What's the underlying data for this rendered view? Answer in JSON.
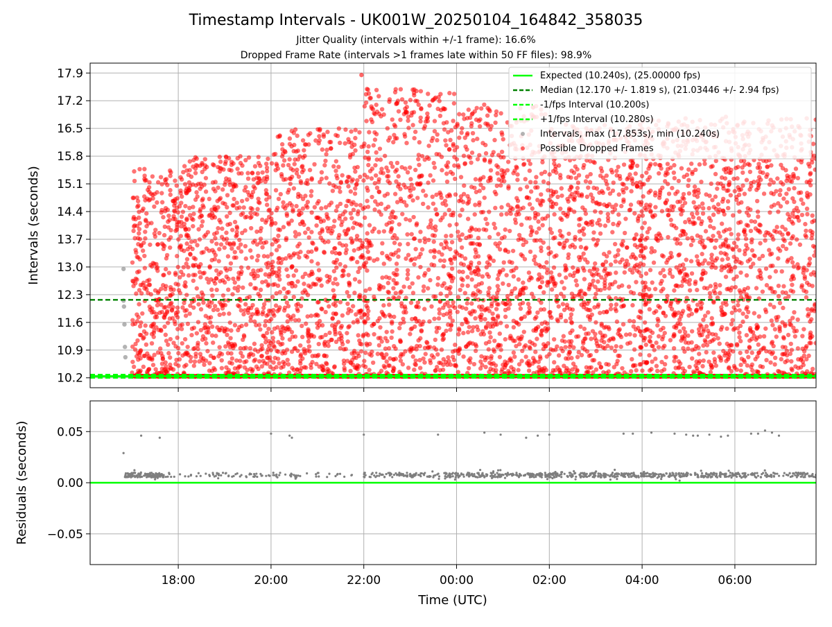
{
  "figure": {
    "title": "Timestamp Intervals - UK001W_20250104_164842_358035",
    "subtitle_line1": "Jitter Quality (intervals within +/-1 frame): 16.6%",
    "subtitle_line2": "Dropped Frame Rate (intervals >1 frames late within 50 FF files): 98.9%"
  },
  "chart_data": [
    {
      "type": "scatter",
      "panel": "intervals",
      "title": "",
      "xlabel": "",
      "ylabel": "Intervals (seconds)",
      "x_unit": "hours since 00:00 UTC (negative = previous day)",
      "xlim": [
        -7.9,
        7.75
      ],
      "ylim": [
        9.95,
        18.15
      ],
      "x_ticks": [
        -6,
        -4,
        -2,
        0,
        2,
        4,
        6
      ],
      "x_tick_labels": [
        "18:00",
        "20:00",
        "22:00",
        "00:00",
        "02:00",
        "04:00",
        "06:00"
      ],
      "y_ticks": [
        10.2,
        10.9,
        11.6,
        12.3,
        13.0,
        13.7,
        14.4,
        15.1,
        15.8,
        16.5,
        17.2,
        17.9
      ],
      "y_tick_labels": [
        "10.2",
        "10.9",
        "11.6",
        "12.3",
        "13.0",
        "13.7",
        "14.4",
        "15.1",
        "15.8",
        "16.5",
        "17.2",
        "17.9"
      ],
      "grid": true,
      "legend_position": "upper-right",
      "lines": [
        {
          "name": "Expected (10.240s), (25.00000 fps)",
          "y": 10.24,
          "color": "#00ff00",
          "style": "solid"
        },
        {
          "name": "Median (12.170 +/- 1.819 s), (21.03446 +/- 2.94 fps)",
          "y": 12.17,
          "color": "#008000",
          "style": "dashed"
        },
        {
          "name": "-1/fps Interval (10.200s)",
          "y": 10.2,
          "color": "#00ff00",
          "style": "dashed"
        },
        {
          "name": "+1/fps Interval (10.280s)",
          "y": 10.28,
          "color": "#00ff00",
          "style": "dashed"
        }
      ],
      "series": [
        {
          "name": "Intervals, max (17.853s), min (10.240s)",
          "color": "#808080",
          "x": [
            -7.18,
            -7.18,
            -7.17,
            -7.16,
            -7.15,
            -7.14
          ],
          "y": [
            12.95,
            12.15,
            12.0,
            11.55,
            10.98,
            10.72
          ]
        },
        {
          "name": "Possible Dropped Frames",
          "color": "#ff0000",
          "x_range": [
            -7.0,
            7.75
          ],
          "y_range": [
            10.28,
            17.85
          ],
          "max_point": [
            -2.05,
            17.85
          ],
          "baseline_y": 10.24,
          "density_by_hour": [
            {
              "x": [
                -7.0,
                -6.0
              ],
              "y_range": [
                10.28,
                15.5
              ]
            },
            {
              "x": [
                -6.0,
                -4.0
              ],
              "y_range": [
                10.28,
                15.8
              ]
            },
            {
              "x": [
                -4.0,
                -2.0
              ],
              "y_range": [
                10.28,
                16.5
              ]
            },
            {
              "x": [
                -2.0,
                0.0
              ],
              "y_range": [
                10.28,
                17.5
              ]
            },
            {
              "x": [
                0.0,
                2.0
              ],
              "y_range": [
                10.28,
                17.1
              ]
            },
            {
              "x": [
                2.0,
                4.0
              ],
              "y_range": [
                10.28,
                16.6
              ]
            },
            {
              "x": [
                4.0,
                7.75
              ],
              "y_range": [
                10.28,
                16.8
              ]
            }
          ]
        }
      ]
    },
    {
      "type": "scatter",
      "panel": "residuals",
      "title": "",
      "xlabel": "Time (UTC)",
      "ylabel": "Residuals (seconds)",
      "xlim": [
        -7.9,
        7.75
      ],
      "ylim": [
        -0.08,
        0.08
      ],
      "x_ticks": [
        -6,
        -4,
        -2,
        0,
        2,
        4,
        6
      ],
      "x_tick_labels": [
        "18:00",
        "20:00",
        "22:00",
        "00:00",
        "02:00",
        "04:00",
        "06:00"
      ],
      "y_ticks": [
        0.05,
        0.0,
        -0.05
      ],
      "y_tick_labels": [
        "0.05",
        "0.00",
        "−0.05"
      ],
      "grid": true,
      "lines": [
        {
          "name": "zero",
          "y": 0.0,
          "color": "#00ff00",
          "style": "solid"
        }
      ],
      "series": [
        {
          "name": "Residuals",
          "color": "#808080",
          "x": [
            -7.18,
            -6.8,
            -6.4,
            -4.0,
            -3.6,
            -3.55,
            -2.0,
            -0.4,
            0.6,
            0.95,
            1.5,
            1.75,
            2.0,
            3.6,
            3.8,
            4.2,
            4.7,
            4.95,
            5.1,
            5.2,
            5.45,
            5.7,
            5.85,
            6.35,
            6.5,
            6.65,
            6.8,
            6.95
          ],
          "y": [
            0.029,
            0.046,
            0.044,
            0.048,
            0.046,
            0.044,
            0.047,
            0.047,
            0.049,
            0.047,
            0.044,
            0.046,
            0.047,
            0.048,
            0.048,
            0.049,
            0.048,
            0.047,
            0.046,
            0.046,
            0.047,
            0.045,
            0.046,
            0.048,
            0.048,
            0.051,
            0.049,
            0.046
          ],
          "band_y": [
            0.002,
            0.011
          ]
        }
      ]
    }
  ]
}
